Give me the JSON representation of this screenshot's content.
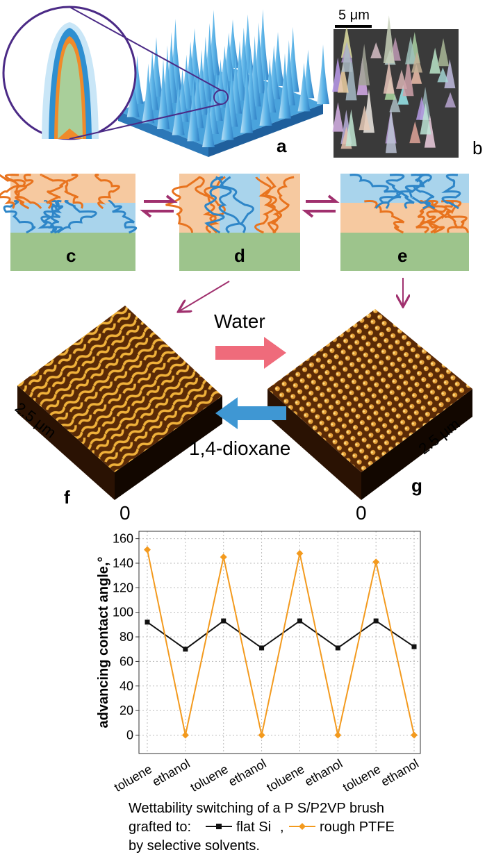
{
  "panels": {
    "a": "a",
    "b": "b",
    "c": "c",
    "d": "d",
    "e": "e",
    "f": "f",
    "g": "g"
  },
  "annotations": {
    "scale_bar": "5 μm",
    "water": "Water",
    "dioxane": "1,4-dioxane",
    "size_f": "2.5 μm",
    "size_g": "2.5 μm",
    "zero_f": "0",
    "zero_g": "0"
  },
  "chart_data": {
    "type": "line",
    "ylabel": "advancing contact angle,°",
    "categories": [
      "toluene",
      "ethanol",
      "toluene",
      "ethanol",
      "toluene",
      "ethanol",
      "toluene",
      "ethanol"
    ],
    "series": [
      {
        "name": "flat Si",
        "color": "#111111",
        "marker": "square",
        "values": [
          92,
          70,
          93,
          71,
          93,
          71,
          93,
          72
        ]
      },
      {
        "name": "rough PTFE",
        "color": "#f39a1e",
        "marker": "diamond",
        "values": [
          151,
          0,
          145,
          0,
          148,
          0,
          141,
          0
        ]
      }
    ],
    "ylim": [
      -15,
      166
    ],
    "yticks": [
      0,
      20,
      40,
      60,
      80,
      100,
      120,
      140,
      160
    ],
    "grid": true
  },
  "caption": {
    "line1": "Wettability switching of a P S/P2VP brush",
    "lead": "grafted to:",
    "separator": ",",
    "line3": "by selective solvents."
  }
}
